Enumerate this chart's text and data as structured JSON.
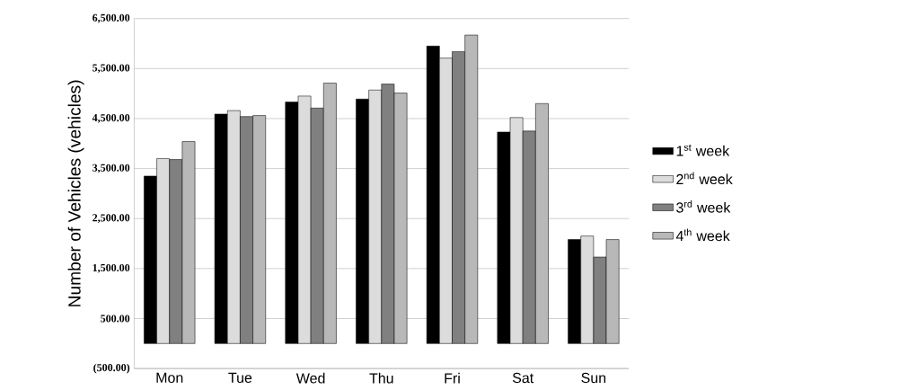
{
  "chart_data": {
    "type": "bar",
    "ylabel": "Number of Vehicles (vehicles)",
    "categories": [
      "Mon",
      "Tue",
      "Wed",
      "Thu",
      "Fri",
      "Sat",
      "Sun"
    ],
    "series": [
      {
        "name": "1$^{st}$ week",
        "color": "#000000",
        "values": [
          3350,
          4590,
          4830,
          4890,
          5950,
          4230,
          2080
        ]
      },
      {
        "name": "2$^{nd}$ week",
        "color": "#dcdcdc",
        "values": [
          3700,
          4660,
          4950,
          5070,
          5710,
          4520,
          2150
        ]
      },
      {
        "name": "3$^{rd}$ week",
        "color": "#808080",
        "values": [
          3680,
          4540,
          4710,
          5190,
          5840,
          4250,
          1730
        ]
      },
      {
        "name": "4$^{th}$ week",
        "color": "#b8b8b8",
        "values": [
          4040,
          4560,
          5210,
          5010,
          6170,
          4800,
          2080
        ]
      }
    ],
    "ylim": [
      -500,
      6500
    ],
    "yticks": [
      {
        "value": -500,
        "label": "(500.00)"
      },
      {
        "value": 500,
        "label": "500.00"
      },
      {
        "value": 1500,
        "label": "1,500.00"
      },
      {
        "value": 2500,
        "label": "2,500.00"
      },
      {
        "value": 3500,
        "label": "3,500.00"
      },
      {
        "value": 4500,
        "label": "4,500.00"
      },
      {
        "value": 5500,
        "label": "5,500.00"
      },
      {
        "value": 6500,
        "label": "6,500.00"
      }
    ],
    "grid": "y",
    "legend": "right"
  }
}
